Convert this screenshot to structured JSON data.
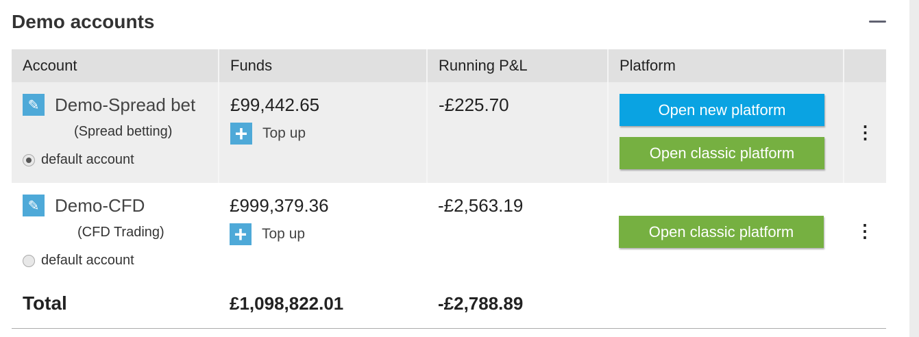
{
  "section": {
    "title": "Demo accounts",
    "collapse_icon": "minus-icon"
  },
  "columns": [
    "Account",
    "Funds",
    "Running P&L",
    "Platform",
    ""
  ],
  "accounts": [
    {
      "name": "Demo-Spread bet",
      "type": "(Spread betting)",
      "default_label": "default account",
      "is_default": true,
      "funds": "£99,442.65",
      "top_up": "Top up",
      "pnl": "-£225.70",
      "buttons": [
        "Open new platform",
        "Open classic platform"
      ]
    },
    {
      "name": "Demo-CFD",
      "type": "(CFD Trading)",
      "default_label": "default account",
      "is_default": false,
      "funds": "£999,379.36",
      "top_up": "Top up",
      "pnl": "-£2,563.19",
      "buttons": [
        "Open classic platform"
      ]
    }
  ],
  "total": {
    "label": "Total",
    "funds": "£1,098,822.01",
    "pnl": "-£2,788.89"
  },
  "colors": {
    "blue_button": "#0aa3e2",
    "green_button": "#76b041",
    "icon_bg": "#4ea9d8"
  }
}
